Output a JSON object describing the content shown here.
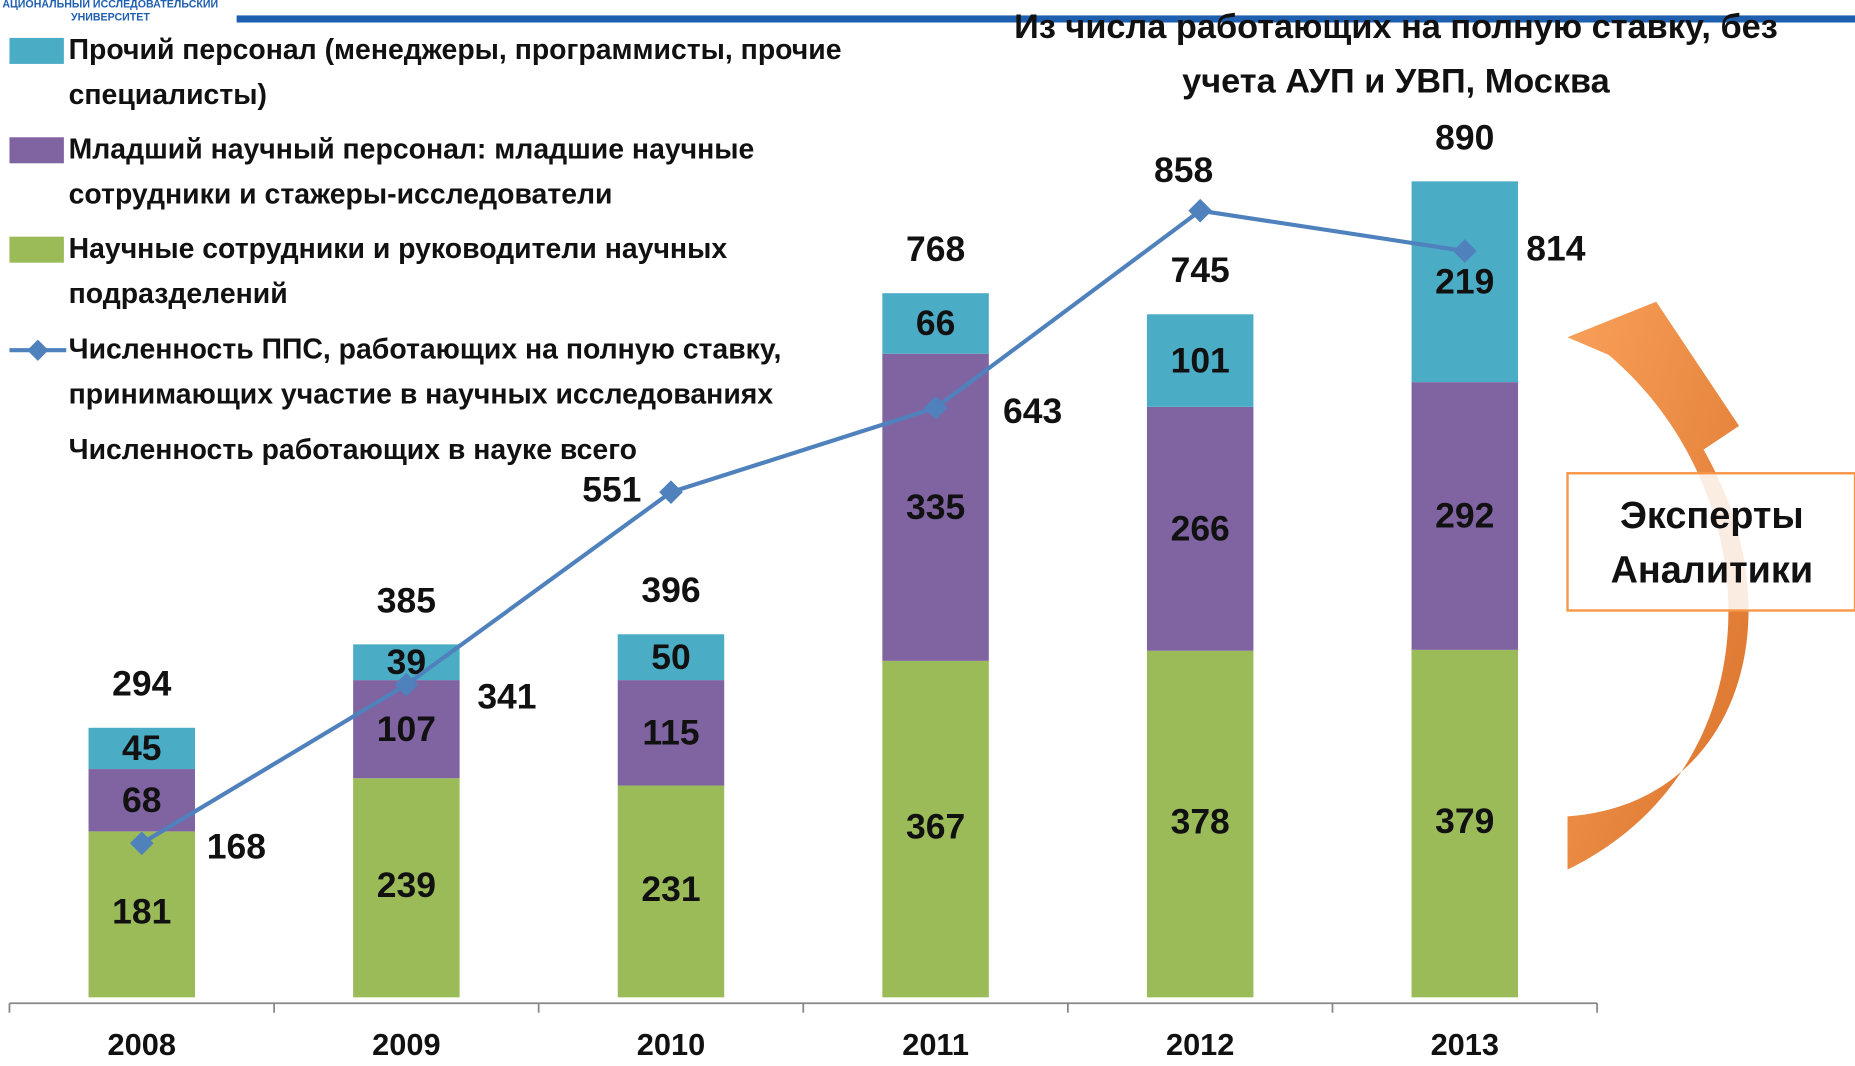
{
  "header": {
    "logo_lines": [
      "АЦИОНАЛЬНЫЙ ИССЛЕДОВАТЕЛЬСКИЙ",
      "УНИВЕРСИТЕТ"
    ]
  },
  "chart_data": {
    "type": "stacked_bar_line",
    "title": "Из числа работающих на полную ставку, без учета АУП и УВП, Москва",
    "categories": [
      "2008",
      "2009",
      "2010",
      "2011",
      "2012",
      "2013"
    ],
    "ylim": [
      0,
      1000
    ],
    "series": [
      {
        "name": "Научные сотрудники и руководители научных подразделений",
        "color": "#9bbb59",
        "values": [
          181,
          239,
          231,
          367,
          378,
          379
        ]
      },
      {
        "name": "Младший научный персонал: младшие научные сотрудники и стажеры-исследователи",
        "color": "#8064a2",
        "values": [
          68,
          107,
          115,
          335,
          266,
          292
        ]
      },
      {
        "name": "Прочий персонал (менеджеры, программисты, прочие специалисты)",
        "color": "#4bacc6",
        "values": [
          45,
          39,
          50,
          66,
          101,
          219
        ]
      },
      {
        "name": "Численность ППС, работающих на полную ставку, принимающих участие в научных исследованиях",
        "color": "#4f81bd",
        "type": "line",
        "values": [
          168,
          341,
          551,
          643,
          858,
          814
        ]
      },
      {
        "name": "Численность работающих в науке всего",
        "type": "total",
        "values": [
          294,
          385,
          396,
          768,
          745,
          890
        ]
      }
    ],
    "annotation": [
      "Эксперты",
      "Аналитики"
    ]
  }
}
